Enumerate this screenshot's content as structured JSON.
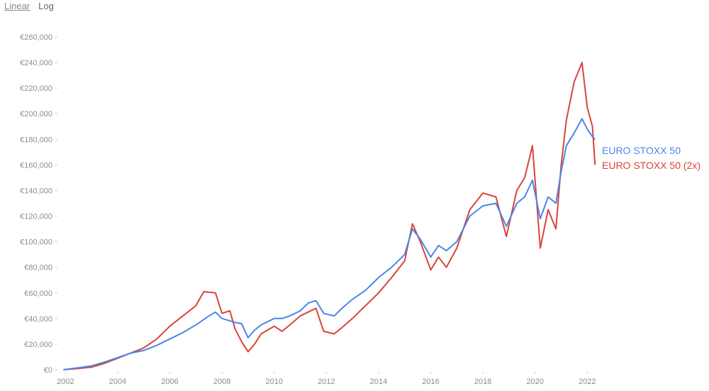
{
  "scale_toggle": {
    "options": [
      "Linear",
      "Log"
    ],
    "selected": "Linear"
  },
  "colors": {
    "blue": "#4a86e8",
    "red": "#d9443a",
    "axis_text": "#8c8c8c"
  },
  "chart_data": {
    "type": "line",
    "title": "",
    "xlabel": "",
    "ylabel": "",
    "xlim": [
      2001.8,
      2022.4
    ],
    "ylim": [
      0,
      260000
    ],
    "x_ticks": [
      "2002",
      "2004",
      "2006",
      "2008",
      "2010",
      "2012",
      "2014",
      "2016",
      "2018",
      "2020",
      "2022"
    ],
    "y_ticks": [
      "€0",
      "€20,000",
      "€40,000",
      "€60,000",
      "€80,000",
      "€100,000",
      "€120,000",
      "€140,000",
      "€160,000",
      "€180,000",
      "€200,000",
      "€220,000",
      "€240,000",
      "€260,000"
    ],
    "legend_placement": "right, at line ends",
    "grid": false,
    "series": [
      {
        "name": "EURO STOXX 50",
        "color": "#4a86e8",
        "points": [
          [
            2001.92,
            0
          ],
          [
            2002.5,
            1500
          ],
          [
            2003.0,
            3000
          ],
          [
            2003.5,
            6000
          ],
          [
            2004.0,
            9500
          ],
          [
            2004.5,
            13000
          ],
          [
            2005.0,
            15000
          ],
          [
            2005.5,
            19000
          ],
          [
            2006.0,
            24000
          ],
          [
            2006.5,
            29000
          ],
          [
            2007.0,
            35000
          ],
          [
            2007.5,
            42000
          ],
          [
            2007.75,
            45000
          ],
          [
            2008.0,
            40000
          ],
          [
            2008.5,
            37000
          ],
          [
            2008.75,
            36000
          ],
          [
            2009.0,
            25000
          ],
          [
            2009.25,
            31000
          ],
          [
            2009.5,
            35000
          ],
          [
            2010.0,
            40000
          ],
          [
            2010.3,
            40000
          ],
          [
            2010.6,
            42000
          ],
          [
            2011.0,
            46000
          ],
          [
            2011.3,
            52000
          ],
          [
            2011.6,
            54000
          ],
          [
            2011.9,
            44000
          ],
          [
            2012.3,
            42000
          ],
          [
            2012.6,
            48000
          ],
          [
            2013.0,
            55000
          ],
          [
            2013.5,
            62000
          ],
          [
            2014.0,
            72000
          ],
          [
            2014.5,
            80000
          ],
          [
            2015.0,
            90000
          ],
          [
            2015.3,
            110000
          ],
          [
            2015.6,
            102000
          ],
          [
            2016.0,
            88000
          ],
          [
            2016.3,
            97000
          ],
          [
            2016.6,
            93000
          ],
          [
            2017.0,
            100000
          ],
          [
            2017.5,
            120000
          ],
          [
            2018.0,
            128000
          ],
          [
            2018.5,
            130000
          ],
          [
            2018.9,
            112000
          ],
          [
            2019.3,
            130000
          ],
          [
            2019.6,
            135000
          ],
          [
            2019.9,
            148000
          ],
          [
            2020.2,
            118000
          ],
          [
            2020.5,
            135000
          ],
          [
            2020.8,
            130000
          ],
          [
            2021.0,
            155000
          ],
          [
            2021.2,
            175000
          ],
          [
            2021.5,
            185000
          ],
          [
            2021.8,
            196000
          ],
          [
            2022.0,
            188000
          ],
          [
            2022.2,
            182000
          ],
          [
            2022.3,
            180000
          ]
        ]
      },
      {
        "name": "EURO STOXX 50 (2x)",
        "color": "#d9443a",
        "points": [
          [
            2001.92,
            0
          ],
          [
            2002.5,
            1000
          ],
          [
            2003.0,
            2000
          ],
          [
            2003.5,
            5000
          ],
          [
            2004.0,
            9000
          ],
          [
            2004.5,
            13000
          ],
          [
            2005.0,
            17000
          ],
          [
            2005.5,
            24000
          ],
          [
            2006.0,
            34000
          ],
          [
            2006.5,
            42000
          ],
          [
            2007.0,
            50000
          ],
          [
            2007.3,
            61000
          ],
          [
            2007.75,
            60000
          ],
          [
            2008.0,
            44000
          ],
          [
            2008.3,
            46000
          ],
          [
            2008.5,
            32000
          ],
          [
            2008.75,
            22000
          ],
          [
            2009.0,
            14000
          ],
          [
            2009.25,
            20000
          ],
          [
            2009.5,
            28000
          ],
          [
            2010.0,
            34000
          ],
          [
            2010.3,
            30000
          ],
          [
            2010.6,
            35000
          ],
          [
            2011.0,
            42000
          ],
          [
            2011.3,
            45000
          ],
          [
            2011.6,
            48000
          ],
          [
            2011.9,
            30000
          ],
          [
            2012.3,
            28000
          ],
          [
            2012.6,
            33000
          ],
          [
            2013.0,
            40000
          ],
          [
            2013.5,
            50000
          ],
          [
            2014.0,
            60000
          ],
          [
            2014.5,
            72000
          ],
          [
            2015.0,
            85000
          ],
          [
            2015.3,
            114000
          ],
          [
            2015.6,
            100000
          ],
          [
            2016.0,
            78000
          ],
          [
            2016.3,
            88000
          ],
          [
            2016.6,
            80000
          ],
          [
            2017.0,
            95000
          ],
          [
            2017.5,
            125000
          ],
          [
            2018.0,
            138000
          ],
          [
            2018.5,
            135000
          ],
          [
            2018.9,
            104000
          ],
          [
            2019.3,
            140000
          ],
          [
            2019.6,
            150000
          ],
          [
            2019.9,
            175000
          ],
          [
            2020.2,
            95000
          ],
          [
            2020.5,
            125000
          ],
          [
            2020.8,
            110000
          ],
          [
            2021.0,
            160000
          ],
          [
            2021.2,
            195000
          ],
          [
            2021.5,
            225000
          ],
          [
            2021.8,
            240000
          ],
          [
            2022.0,
            205000
          ],
          [
            2022.2,
            190000
          ],
          [
            2022.3,
            160000
          ]
        ]
      }
    ]
  }
}
